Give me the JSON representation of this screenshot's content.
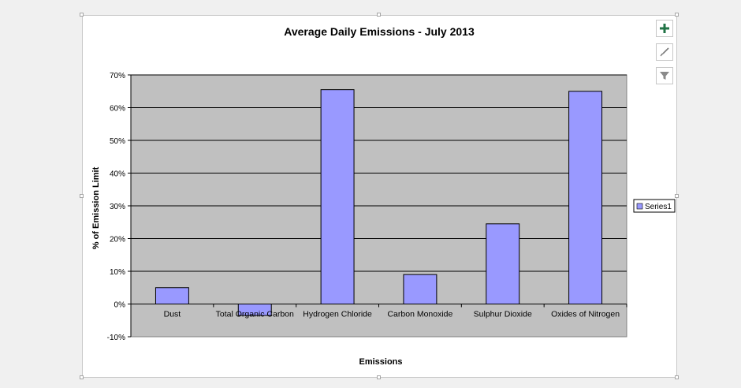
{
  "toolbar": {
    "add_element_icon": "plus-icon",
    "style_icon": "brush-icon",
    "filter_icon": "filter-icon"
  },
  "colors": {
    "plot_area": "#c0c0c0",
    "bar_fill": "#9999ff",
    "bar_stroke": "#000000",
    "tool_accent": "#217346"
  },
  "chart_data": {
    "type": "bar",
    "title": "Average Daily Emissions - July 2013",
    "xlabel": "Emissions",
    "ylabel": "% of Emission Limit",
    "categories": [
      "Dust",
      "Total Organic Carbon",
      "Hydrogen Chloride",
      "Carbon Monoxide",
      "Sulphur Dioxide",
      "Oxides of Nitrogen"
    ],
    "series": [
      {
        "name": "Series1",
        "values": [
          0.05,
          -0.035,
          0.655,
          0.09,
          0.245,
          0.65
        ]
      }
    ],
    "ylim": [
      -0.1,
      0.7
    ],
    "yticks": [
      -0.1,
      0,
      0.1,
      0.2,
      0.3,
      0.4,
      0.5,
      0.6,
      0.7
    ],
    "ytick_labels": [
      "-10%",
      "0%",
      "10%",
      "20%",
      "30%",
      "40%",
      "50%",
      "60%",
      "70%"
    ],
    "grid": true,
    "legend": "right"
  }
}
